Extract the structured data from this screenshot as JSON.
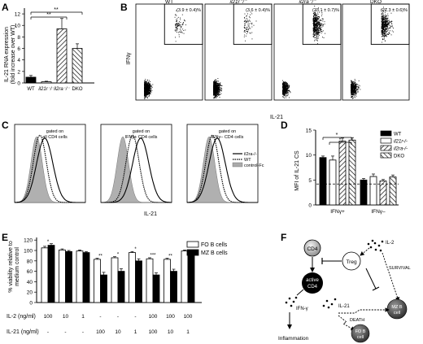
{
  "panel_letters": {
    "a": "A",
    "b": "B",
    "c": "C",
    "d": "D",
    "e": "E",
    "f": "F"
  },
  "panelA": {
    "ylabel_line1": "IL-21 RNA expression",
    "ylabel_line2": "(fold increase over WT)",
    "sig": "**",
    "chart_data": {
      "type": "bar",
      "categories": [
        "WT",
        "il21r⁻/⁻",
        "il2ra⁻/⁻",
        "DKO"
      ],
      "values": [
        1.0,
        0.2,
        9.4,
        6.0
      ],
      "errors": [
        0.3,
        0.1,
        1.8,
        0.8
      ],
      "ylim": [
        0,
        13
      ],
      "yticks": [
        "0",
        "2",
        "4",
        "6",
        "8",
        "10",
        "12"
      ]
    }
  },
  "panelB": {
    "ylabel": "IFNγ",
    "xlabel": "IL-21",
    "plots": [
      {
        "title": "WT",
        "pct": "(3.9 ± 0.4)%"
      },
      {
        "title": "il21r⁻/⁻",
        "pct": "(3.6 ± 0.4)%"
      },
      {
        "title": "il2ra⁻/⁻",
        "pct": "(23.1 ± 0.7)%"
      },
      {
        "title": "DKO",
        "pct": "(21.3 ± 0.6)%"
      }
    ]
  },
  "panelC": {
    "xlabel": "IL-21",
    "plots": [
      {
        "line1": "gated on",
        "line2": "all CD4 cells"
      },
      {
        "line1": "gated on",
        "line2": "IFNγ+ CD4 cells"
      },
      {
        "line1": "gated on",
        "line2": "IFNγ– CD4 cells"
      }
    ],
    "legend": [
      "il2ra-/-",
      "WT",
      "control-Fc"
    ]
  },
  "panelD": {
    "ylabel": "MFI of IL-21 CS",
    "sig": "*",
    "chart_data": {
      "type": "bar",
      "categories": [
        "IFNγ+",
        "IFNγ–"
      ],
      "series": [
        {
          "name": "WT",
          "values": [
            9.5,
            5.0
          ],
          "errors": [
            0.3,
            0.3
          ]
        },
        {
          "name": "il21r-/-",
          "values": [
            9.0,
            5.7
          ],
          "errors": [
            0.8,
            0.5
          ]
        },
        {
          "name": "il2ra-/-",
          "values": [
            12.8,
            4.8
          ],
          "errors": [
            0.6,
            0.3
          ]
        },
        {
          "name": "DKO",
          "values": [
            13.0,
            5.6
          ],
          "errors": [
            0.5,
            0.4
          ]
        }
      ],
      "ylim": [
        0,
        15
      ],
      "yticks": [
        "0",
        "5",
        "10",
        "15"
      ],
      "dashed_line": 4.2
    }
  },
  "panelE": {
    "ylabel_line1": "% viability relative to",
    "ylabel_line2": "medium control",
    "row1_label": "IL-2 (ng/ml)",
    "row2_label": "IL-21 (ng/ml)",
    "row1": [
      "100",
      "10",
      "1",
      "-",
      "-",
      "-",
      "100",
      "100",
      "100"
    ],
    "row2": [
      "-",
      "-",
      "-",
      "100",
      "10",
      "1",
      "100",
      "10",
      "1"
    ],
    "sigs": [
      "*",
      "",
      "",
      "**",
      "*",
      "*",
      "***",
      "**",
      "*"
    ],
    "chart_data": {
      "type": "bar",
      "groups": 9,
      "series": [
        {
          "name": "FO B cells",
          "values": [
            105,
            101,
            99,
            83,
            86,
            96,
            84,
            83,
            99
          ],
          "errors": [
            3,
            2,
            2,
            2,
            2,
            2,
            2,
            2,
            2
          ]
        },
        {
          "name": "MZ B cells",
          "values": [
            110,
            98,
            96,
            53,
            60,
            80,
            53,
            60,
            93
          ],
          "errors": [
            3,
            2,
            2,
            5,
            5,
            4,
            4,
            4,
            3
          ]
        }
      ],
      "ylim": [
        0,
        125
      ],
      "yticks": [
        "0",
        "20",
        "40",
        "60",
        "80",
        "100",
        "120"
      ]
    }
  },
  "panelF": {
    "cd4": "CD4",
    "active1": "active",
    "active2": "CD4",
    "treg": "Treg",
    "il2": "IL-2",
    "il21": "IL-21",
    "ifng": "IFN-γ",
    "survival": "SURVIVAL",
    "death": "DEATH",
    "inflammation": "Inflammation",
    "mz1": "MZ B",
    "mz2": "cell",
    "fo1": "FO B",
    "fo2": "cell"
  }
}
